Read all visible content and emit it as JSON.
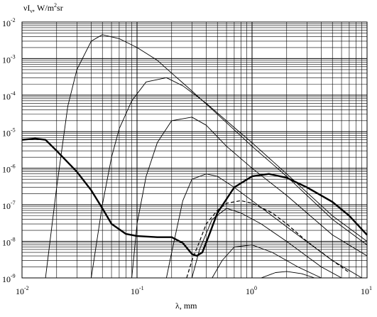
{
  "chart_data": {
    "type": "line",
    "title": "",
    "ylabel_main": "νI",
    "ylabel_sub": "ν",
    "ylabel_unit_pre": ", W/m",
    "ylabel_unit_sup": "2",
    "ylabel_unit_post": "sr",
    "xlabel": "λ, mm",
    "x_scale": "log",
    "y_scale": "log",
    "xlim": [
      0.01,
      10
    ],
    "ylim": [
      1e-09,
      0.01
    ],
    "grid": true,
    "x_ticks": [
      {
        "value": 0.01,
        "base": "10",
        "exp": "-2"
      },
      {
        "value": 0.1,
        "base": "10",
        "exp": "-1"
      },
      {
        "value": 1,
        "base": "10",
        "exp": "0"
      },
      {
        "value": 10,
        "base": "10",
        "exp": "1"
      }
    ],
    "y_ticks": [
      {
        "value": 0.01,
        "base": "10",
        "exp": "-2"
      },
      {
        "value": 0.001,
        "base": "10",
        "exp": "-3"
      },
      {
        "value": 0.0001,
        "base": "10",
        "exp": "-4"
      },
      {
        "value": 1e-05,
        "base": "10",
        "exp": "-5"
      },
      {
        "value": 1e-06,
        "base": "10",
        "exp": "-6"
      },
      {
        "value": 1e-07,
        "base": "10",
        "exp": "-7"
      },
      {
        "value": 1e-08,
        "base": "10",
        "exp": "-8"
      },
      {
        "value": 1e-09,
        "base": "10",
        "exp": "-9"
      }
    ],
    "series": [
      {
        "style": "thin",
        "points": [
          [
            0.016,
            1e-09
          ],
          [
            0.02,
            3e-07
          ],
          [
            0.025,
            5e-05
          ],
          [
            0.03,
            0.0005
          ],
          [
            0.04,
            0.003
          ],
          [
            0.05,
            0.0045
          ],
          [
            0.07,
            0.0035
          ],
          [
            0.1,
            0.002
          ],
          [
            0.15,
            0.0009
          ],
          [
            0.2,
            0.0004
          ],
          [
            0.3,
            0.00013
          ],
          [
            0.5,
            3e-05
          ],
          [
            1,
            4e-06
          ],
          [
            2,
            6e-07
          ],
          [
            5,
            4e-08
          ],
          [
            10,
            8e-09
          ]
        ]
      },
      {
        "style": "thin",
        "points": [
          [
            0.04,
            1e-09
          ],
          [
            0.05,
            1e-07
          ],
          [
            0.06,
            2e-06
          ],
          [
            0.07,
            1.2e-05
          ],
          [
            0.09,
            7e-05
          ],
          [
            0.12,
            0.00023
          ],
          [
            0.18,
            0.0003
          ],
          [
            0.25,
            0.00018
          ],
          [
            0.4,
            6e-05
          ],
          [
            0.7,
            1.3e-05
          ],
          [
            1,
            5e-06
          ],
          [
            2,
            7e-07
          ],
          [
            5,
            5e-08
          ],
          [
            10,
            1e-08
          ]
        ]
      },
      {
        "style": "thin",
        "points": [
          [
            0.09,
            1e-09
          ],
          [
            0.1,
            3e-08
          ],
          [
            0.12,
            6e-07
          ],
          [
            0.15,
            5e-06
          ],
          [
            0.2,
            2e-05
          ],
          [
            0.3,
            2.5e-05
          ],
          [
            0.4,
            1.5e-05
          ],
          [
            0.6,
            4e-06
          ],
          [
            1,
            1e-06
          ],
          [
            2,
            1.8e-07
          ],
          [
            5,
            1.5e-08
          ],
          [
            10,
            4e-09
          ]
        ]
      },
      {
        "style": "thin",
        "points": [
          [
            0.18,
            1e-09
          ],
          [
            0.2,
            5e-09
          ],
          [
            0.25,
            1.3e-07
          ],
          [
            0.3,
            5e-07
          ],
          [
            0.4,
            7e-07
          ],
          [
            0.5,
            6e-07
          ],
          [
            0.7,
            3e-07
          ],
          [
            1,
            1.3e-07
          ],
          [
            2,
            2.5e-08
          ],
          [
            5,
            3e-09
          ],
          [
            9,
            1e-09
          ]
        ]
      },
      {
        "style": "thin",
        "points": [
          [
            0.3,
            1e-09
          ],
          [
            0.35,
            6e-09
          ],
          [
            0.45,
            4e-08
          ],
          [
            0.6,
            8e-08
          ],
          [
            0.8,
            6e-08
          ],
          [
            1.2,
            3e-08
          ],
          [
            2,
            1e-08
          ],
          [
            4,
            2e-09
          ],
          [
            6,
            1e-09
          ]
        ]
      },
      {
        "style": "thin",
        "points": [
          [
            0.45,
            1e-09
          ],
          [
            0.55,
            3e-09
          ],
          [
            0.7,
            7e-09
          ],
          [
            1,
            8e-09
          ],
          [
            1.5,
            5e-09
          ],
          [
            2.5,
            2e-09
          ],
          [
            4,
            1e-09
          ]
        ]
      },
      {
        "style": "thin",
        "points": [
          [
            1.2,
            1e-09
          ],
          [
            1.6,
            1.4e-09
          ],
          [
            2,
            1.5e-09
          ],
          [
            2.7,
            1.3e-09
          ],
          [
            3.5,
            1e-09
          ]
        ]
      },
      {
        "style": "dashed",
        "points": [
          [
            0.27,
            1e-09
          ],
          [
            0.3,
            3e-09
          ],
          [
            0.35,
            1e-08
          ],
          [
            0.4,
            3e-08
          ],
          [
            0.5,
            7e-08
          ],
          [
            0.6,
            1.1e-07
          ],
          [
            0.8,
            1.3e-07
          ],
          [
            1,
            1.1e-07
          ],
          [
            1.5,
            6e-08
          ],
          [
            2,
            3e-08
          ],
          [
            3,
            1e-08
          ],
          [
            5,
            3e-09
          ],
          [
            7,
            1.4e-09
          ]
        ]
      },
      {
        "style": "bold",
        "points": [
          [
            0.01,
            6e-06
          ],
          [
            0.013,
            6.5e-06
          ],
          [
            0.016,
            6e-06
          ],
          [
            0.02,
            3e-06
          ],
          [
            0.03,
            8e-07
          ],
          [
            0.04,
            2.5e-07
          ],
          [
            0.05,
            8e-08
          ],
          [
            0.06,
            3e-08
          ],
          [
            0.08,
            1.6e-08
          ],
          [
            0.1,
            1.4e-08
          ],
          [
            0.15,
            1.3e-08
          ],
          [
            0.2,
            1.3e-08
          ],
          [
            0.25,
            9e-09
          ],
          [
            0.3,
            4.5e-09
          ],
          [
            0.33,
            4e-09
          ],
          [
            0.37,
            5e-09
          ],
          [
            0.42,
            1.4e-08
          ],
          [
            0.5,
            6e-08
          ],
          [
            0.7,
            3e-07
          ],
          [
            1,
            6e-07
          ],
          [
            1.4,
            7e-07
          ],
          [
            2,
            5.5e-07
          ],
          [
            3,
            3e-07
          ],
          [
            5,
            1.2e-07
          ],
          [
            7,
            5e-08
          ],
          [
            10,
            1.5e-08
          ]
        ]
      }
    ]
  }
}
